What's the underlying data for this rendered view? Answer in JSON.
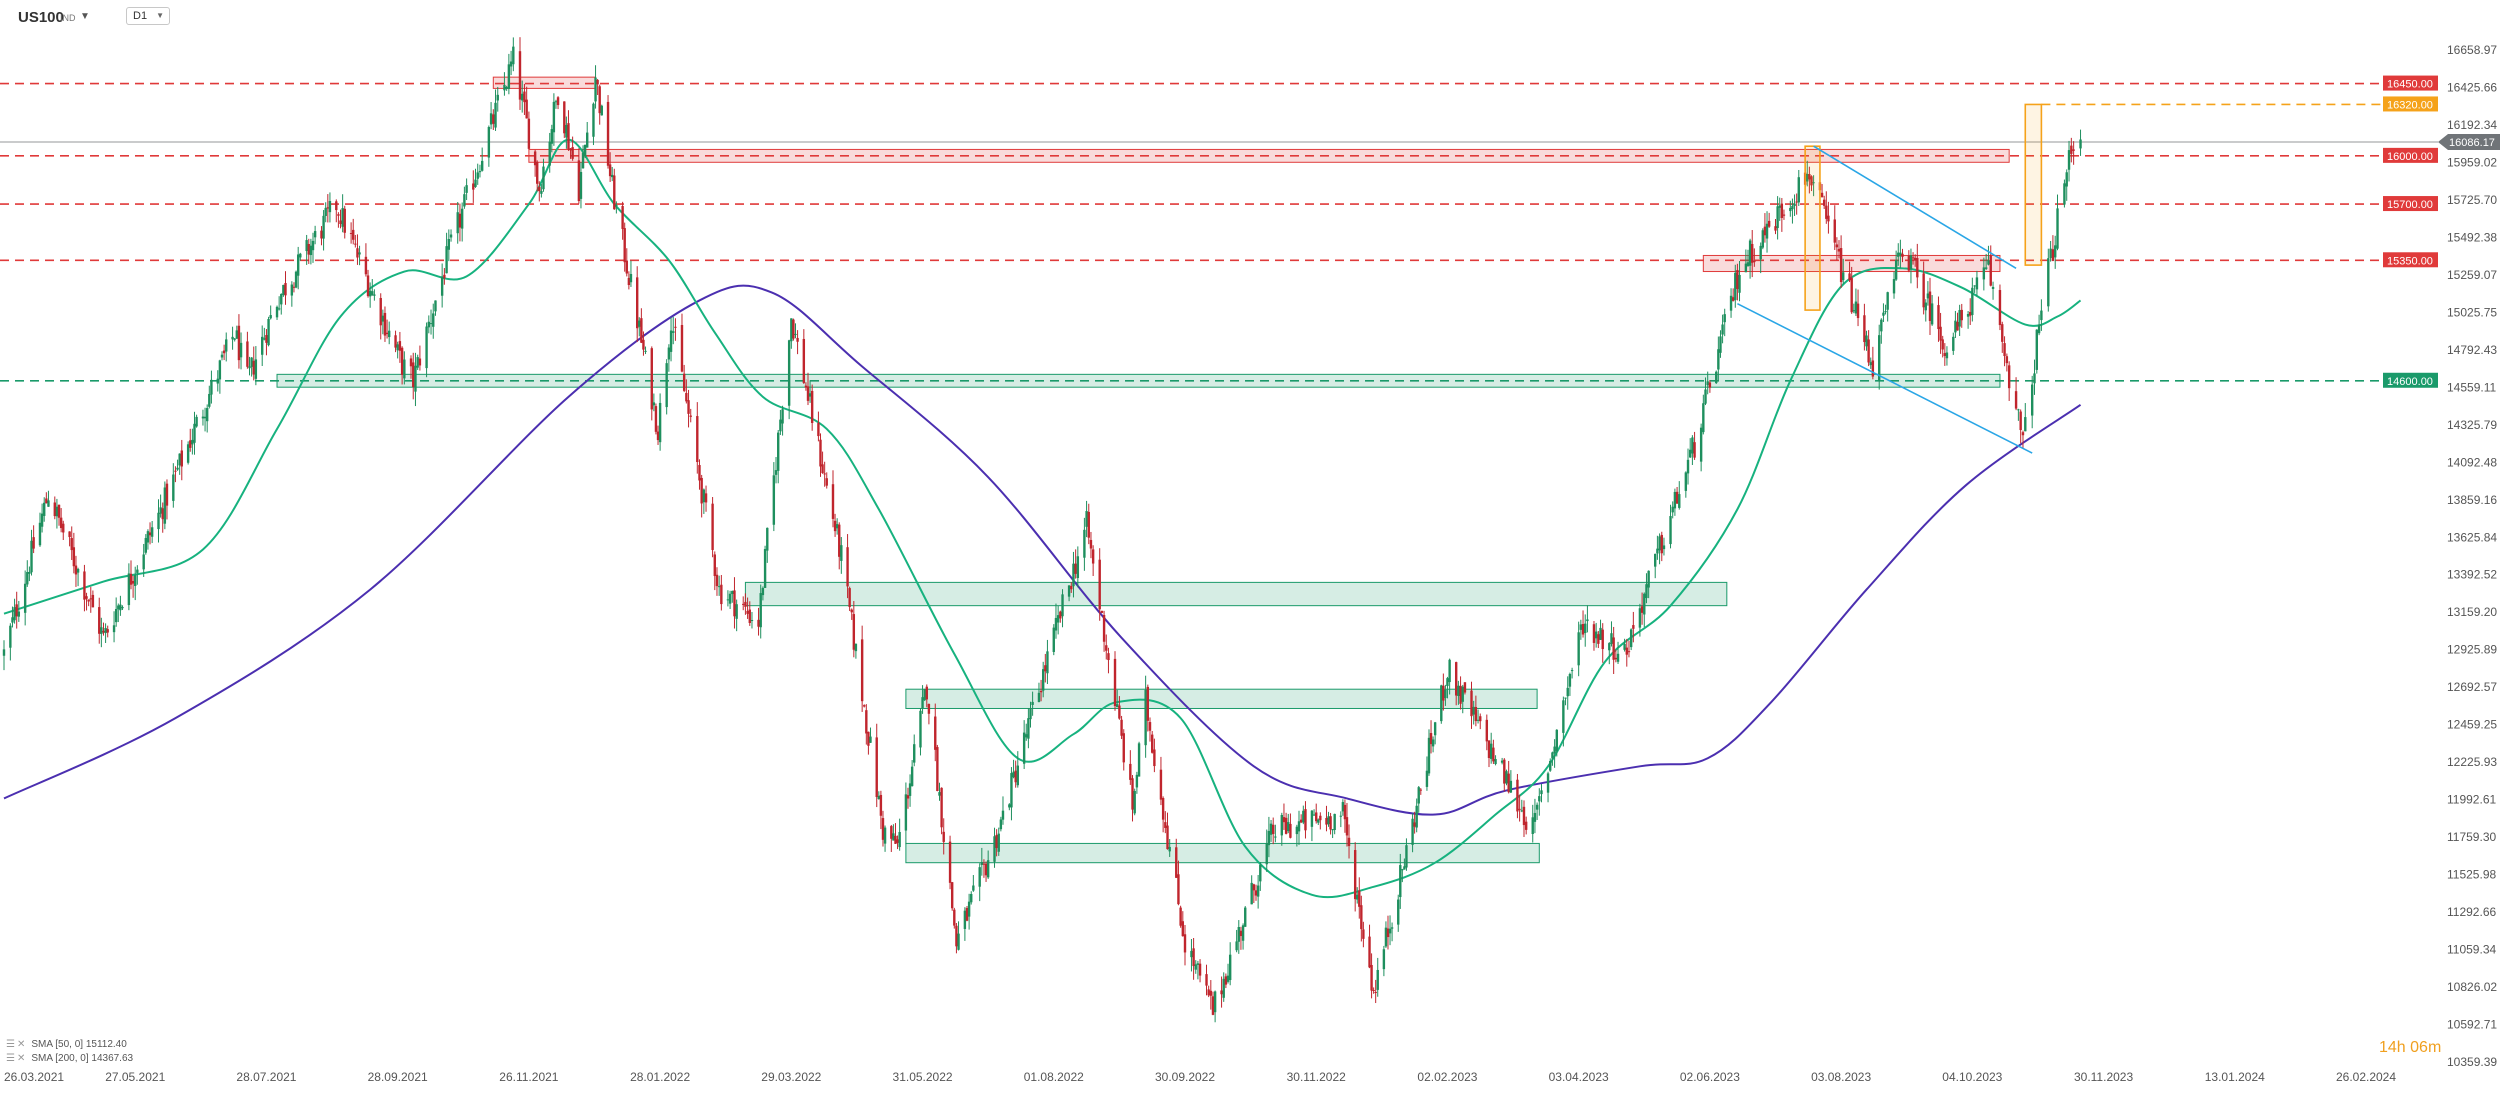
{
  "header": {
    "symbol": "US100",
    "symbol_sub": "IND",
    "timeframe": "D1"
  },
  "colors": {
    "bull": "#1e8f5e",
    "bear": "#c0252d",
    "sma50": "#17b27f",
    "sma200": "#4b2fb0",
    "resistance": "#e03a3a",
    "support": "#1a9a6a",
    "target": "#f5a21a",
    "channel": "#2aa6e6",
    "last": "#707478"
  },
  "legend": [
    {
      "label": "SMA [50, 0] 15112.40"
    },
    {
      "label": "SMA [200, 0] 14367.63"
    }
  ],
  "timer": {
    "label": "14h 06m"
  },
  "chart_data": {
    "type": "candlestick",
    "timeframe": "D1",
    "y_ticks": [
      "16658.97",
      "16425.66",
      "16192.34",
      "15959.02",
      "15725.70",
      "15492.38",
      "15259.07",
      "15025.75",
      "14792.43",
      "14559.11",
      "14325.79",
      "14092.48",
      "13859.16",
      "13625.84",
      "13392.52",
      "13159.20",
      "12925.89",
      "12692.57",
      "12459.25",
      "12225.93",
      "11992.61",
      "11759.30",
      "11525.98",
      "11292.66",
      "11059.34",
      "10826.02",
      "10592.71",
      "10359.39"
    ],
    "x_ticks": [
      "26.03.2021",
      "27.05.2021",
      "28.07.2021",
      "28.09.2021",
      "26.11.2021",
      "28.01.2022",
      "29.03.2022",
      "31.05.2022",
      "01.08.2022",
      "30.09.2022",
      "30.11.2022",
      "02.02.2023",
      "03.04.2023",
      "02.06.2023",
      "03.08.2023",
      "04.10.2023",
      "30.11.2023",
      "13.01.2024",
      "26.02.2024"
    ],
    "ylim": [
      10359.39,
      16658.97
    ],
    "last_price": {
      "label": "16086.17",
      "value": 16086.17
    },
    "level_lines": [
      {
        "label": "16450.00",
        "value": 16450,
        "kind": "resistance"
      },
      {
        "label": "16320.00",
        "value": 16320,
        "kind": "target"
      },
      {
        "label": "16000.00",
        "value": 16000,
        "kind": "resistance"
      },
      {
        "label": "15700.00",
        "value": 15700,
        "kind": "resistance"
      },
      {
        "label": "15350.00",
        "value": 15350,
        "kind": "resistance"
      },
      {
        "label": "14600.00",
        "value": 14600,
        "kind": "support"
      }
    ],
    "zones": [
      {
        "kind": "resistance",
        "from": "2021-11-10",
        "to": "2021-12-28",
        "low": 16420,
        "high": 16490
      },
      {
        "kind": "resistance",
        "from": "2021-11-26",
        "to": "2023-10-20",
        "low": 15960,
        "high": 16040
      },
      {
        "kind": "resistance",
        "from": "2023-05-30",
        "to": "2023-10-16",
        "low": 15280,
        "high": 15380
      },
      {
        "kind": "support",
        "from": "2021-08-02",
        "to": "2023-10-16",
        "low": 14560,
        "high": 14640
      },
      {
        "kind": "support",
        "from": "2022-03-08",
        "to": "2023-06-10",
        "low": 13200,
        "high": 13345
      },
      {
        "kind": "support",
        "from": "2022-05-23",
        "to": "2023-03-15",
        "low": 12560,
        "high": 12680
      },
      {
        "kind": "support",
        "from": "2022-05-23",
        "to": "2023-03-16",
        "low": 11600,
        "high": 11720
      }
    ],
    "target_boxes": [
      {
        "from": "2023-07-17",
        "to": "2023-07-24",
        "low": 15040,
        "high": 16060
      },
      {
        "from": "2023-10-27",
        "to": "2023-11-03",
        "low": 15320,
        "high": 16320
      }
    ],
    "channel_lines": [
      {
        "from": [
          "2023-07-21",
          16060
        ],
        "to": [
          "2023-10-23",
          15300
        ]
      },
      {
        "from": [
          "2023-06-15",
          15080
        ],
        "to": [
          "2023-10-30",
          14150
        ]
      }
    ],
    "series": [
      {
        "name": "US100",
        "style": "candles",
        "anchors": [
          [
            "2021-03-26",
            12900
          ],
          [
            "2021-04-16",
            13900
          ],
          [
            "2021-05-12",
            13000
          ],
          [
            "2021-06-10",
            13850
          ],
          [
            "2021-07-13",
            14900
          ],
          [
            "2021-07-19",
            14600
          ],
          [
            "2021-08-02",
            15100
          ],
          [
            "2021-08-30",
            15700
          ],
          [
            "2021-09-30",
            14700
          ],
          [
            "2021-10-05",
            14600
          ],
          [
            "2021-10-21",
            15400
          ],
          [
            "2021-11-19",
            16600
          ],
          [
            "2021-12-01",
            15800
          ],
          [
            "2021-12-10",
            16400
          ],
          [
            "2021-12-20",
            15800
          ],
          [
            "2021-12-28",
            16500
          ],
          [
            "2022-01-05",
            15800
          ],
          [
            "2022-01-27",
            14300
          ],
          [
            "2022-02-02",
            15000
          ],
          [
            "2022-02-24",
            13300
          ],
          [
            "2022-03-14",
            13100
          ],
          [
            "2022-03-29",
            15000
          ],
          [
            "2022-04-22",
            13500
          ],
          [
            "2022-05-12",
            11800
          ],
          [
            "2022-05-19",
            11700
          ],
          [
            "2022-06-02",
            12700
          ],
          [
            "2022-06-16",
            11100
          ],
          [
            "2022-07-06",
            11800
          ],
          [
            "2022-08-16",
            13700
          ],
          [
            "2022-09-06",
            11950
          ],
          [
            "2022-09-12",
            12600
          ],
          [
            "2022-09-30",
            11100
          ],
          [
            "2022-10-13",
            10680
          ],
          [
            "2022-11-10",
            11800
          ],
          [
            "2022-12-13",
            11900
          ],
          [
            "2022-12-28",
            10800
          ],
          [
            "2023-01-10",
            11500
          ],
          [
            "2023-02-02",
            12800
          ],
          [
            "2023-02-14",
            12500
          ],
          [
            "2023-03-13",
            11800
          ],
          [
            "2023-04-05",
            13100
          ],
          [
            "2023-04-24",
            12900
          ],
          [
            "2023-05-26",
            14200
          ],
          [
            "2023-06-16",
            15300
          ],
          [
            "2023-07-19",
            15900
          ],
          [
            "2023-08-18",
            14700
          ],
          [
            "2023-09-01",
            15450
          ],
          [
            "2023-09-22",
            14800
          ],
          [
            "2023-10-11",
            15300
          ],
          [
            "2023-10-26",
            14200
          ],
          [
            "2023-11-03",
            15050
          ],
          [
            "2023-11-16",
            16050
          ],
          [
            "2023-11-20",
            16150
          ]
        ]
      },
      {
        "name": "SMA [50, 0]",
        "style": "line",
        "anchors": [
          [
            "2021-03-26",
            13150
          ],
          [
            "2021-05-12",
            13350
          ],
          [
            "2021-06-28",
            13550
          ],
          [
            "2021-08-02",
            14300
          ],
          [
            "2021-09-01",
            15000
          ],
          [
            "2021-10-01",
            15280
          ],
          [
            "2021-10-29",
            15250
          ],
          [
            "2021-11-26",
            15700
          ],
          [
            "2021-12-15",
            16100
          ],
          [
            "2022-01-06",
            15700
          ],
          [
            "2022-02-01",
            15350
          ],
          [
            "2022-02-22",
            14900
          ],
          [
            "2022-03-16",
            14500
          ],
          [
            "2022-04-15",
            14300
          ],
          [
            "2022-05-10",
            13800
          ],
          [
            "2022-06-15",
            12900
          ],
          [
            "2022-07-15",
            12250
          ],
          [
            "2022-08-10",
            12400
          ],
          [
            "2022-08-30",
            12600
          ],
          [
            "2022-09-28",
            12500
          ],
          [
            "2022-10-28",
            11700
          ],
          [
            "2022-11-28",
            11400
          ],
          [
            "2022-12-28",
            11450
          ],
          [
            "2023-01-27",
            11600
          ],
          [
            "2023-02-24",
            11900
          ],
          [
            "2023-03-20",
            12200
          ],
          [
            "2023-04-15",
            12850
          ],
          [
            "2023-05-15",
            13200
          ],
          [
            "2023-06-15",
            13800
          ],
          [
            "2023-07-10",
            14600
          ],
          [
            "2023-08-04",
            15200
          ],
          [
            "2023-09-01",
            15300
          ],
          [
            "2023-09-29",
            15180
          ],
          [
            "2023-10-27",
            14950
          ],
          [
            "2023-11-10",
            15000
          ],
          [
            "2023-11-20",
            15100
          ]
        ]
      },
      {
        "name": "SMA [200, 0]",
        "style": "line",
        "anchors": [
          [
            "2021-03-26",
            12000
          ],
          [
            "2021-06-15",
            12500
          ],
          [
            "2021-09-15",
            13300
          ],
          [
            "2021-12-15",
            14500
          ],
          [
            "2022-02-15",
            15100
          ],
          [
            "2022-03-20",
            15150
          ],
          [
            "2022-05-01",
            14700
          ],
          [
            "2022-07-01",
            14000
          ],
          [
            "2022-09-01",
            13000
          ],
          [
            "2022-11-01",
            12200
          ],
          [
            "2022-12-15",
            12000
          ],
          [
            "2023-01-27",
            11900
          ],
          [
            "2023-03-01",
            12050
          ],
          [
            "2023-05-01",
            12200
          ],
          [
            "2023-06-01",
            12250
          ],
          [
            "2023-07-01",
            12600
          ],
          [
            "2023-08-15",
            13300
          ],
          [
            "2023-10-01",
            13950
          ],
          [
            "2023-11-20",
            14450
          ]
        ]
      }
    ]
  }
}
